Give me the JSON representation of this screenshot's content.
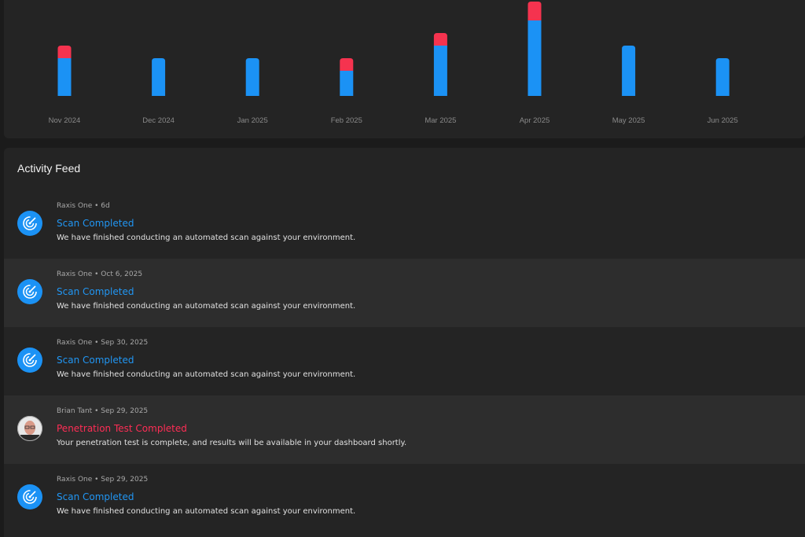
{
  "chart_data": {
    "type": "bar",
    "stacked": true,
    "categories": [
      "Nov 2024",
      "Dec 2024",
      "Jan 2025",
      "Feb 2025",
      "Mar 2025",
      "Apr 2025",
      "May 2025",
      "Jun 2025"
    ],
    "series": [
      {
        "color": "#1b92f5",
        "values": [
          3,
          3,
          3,
          2,
          4,
          6,
          4,
          3
        ]
      },
      {
        "color": "#f5334f",
        "values": [
          1,
          0,
          0,
          1,
          1,
          1.5,
          0,
          0
        ]
      }
    ],
    "ylim": [
      0,
      7.5
    ]
  },
  "feed": {
    "title": "Activity Feed",
    "items": [
      {
        "icon": "radar",
        "meta": "Raxis One • 6d",
        "title": "Scan Completed",
        "title_color": "#2196f3",
        "text": "We have finished conducting an automated scan against your environment."
      },
      {
        "icon": "radar",
        "meta": "Raxis One • Oct 6, 2025",
        "title": "Scan Completed",
        "title_color": "#2196f3",
        "text": "We have finished conducting an automated scan against your environment."
      },
      {
        "icon": "radar",
        "meta": "Raxis One • Sep 30, 2025",
        "title": "Scan Completed",
        "title_color": "#2196f3",
        "text": "We have finished conducting an automated scan against your environment."
      },
      {
        "icon": "avatar",
        "meta": "Brian Tant • Sep 29, 2025",
        "title": "Penetration Test Completed",
        "title_color": "#ff2d55",
        "text": "Your penetration test is complete, and results will be available in your dashboard shortly."
      },
      {
        "icon": "radar",
        "meta": "Raxis One • Sep 29, 2025",
        "title": "Scan Completed",
        "title_color": "#2196f3",
        "text": "We have finished conducting an automated scan against your environment."
      }
    ]
  }
}
